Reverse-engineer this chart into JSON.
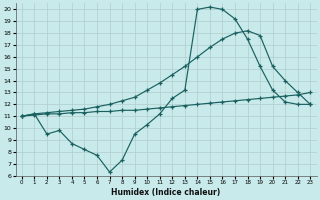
{
  "xlabel": "Humidex (Indice chaleur)",
  "bg_color": "#c8eaea",
  "grid_color": "#b0cccc",
  "line_color": "#1a6060",
  "xlim": [
    -0.5,
    23.5
  ],
  "ylim": [
    6,
    20.5
  ],
  "xticks": [
    0,
    1,
    2,
    3,
    4,
    5,
    6,
    7,
    8,
    9,
    10,
    11,
    12,
    13,
    14,
    15,
    16,
    17,
    18,
    19,
    20,
    21,
    22,
    23
  ],
  "yticks": [
    6,
    7,
    8,
    9,
    10,
    11,
    12,
    13,
    14,
    15,
    16,
    17,
    18,
    19,
    20
  ],
  "s1_x": [
    0,
    1,
    2,
    3,
    4,
    5,
    6,
    7,
    8,
    9,
    10,
    11,
    12,
    13,
    14,
    15,
    16,
    17,
    18,
    19,
    20,
    21,
    22,
    23
  ],
  "s1_y": [
    11.0,
    11.2,
    9.5,
    9.8,
    8.7,
    8.2,
    7.7,
    6.3,
    7.3,
    9.5,
    10.3,
    11.2,
    12.5,
    13.2,
    20.0,
    20.2,
    20.0,
    19.2,
    17.5,
    15.2,
    13.2,
    12.2,
    12.0,
    12.0
  ],
  "s2_x": [
    0,
    1,
    2,
    3,
    4,
    5,
    6,
    7,
    8,
    9,
    10,
    11,
    12,
    13,
    14,
    15,
    16,
    17,
    18,
    19,
    20,
    21,
    22,
    23
  ],
  "s2_y": [
    11.0,
    11.2,
    11.3,
    11.4,
    11.5,
    11.6,
    11.8,
    12.0,
    12.3,
    12.6,
    13.2,
    13.8,
    14.5,
    15.2,
    16.0,
    16.8,
    17.5,
    18.0,
    18.2,
    17.8,
    15.2,
    14.0,
    13.0,
    12.0
  ],
  "s3_x": [
    0,
    1,
    2,
    3,
    4,
    5,
    6,
    7,
    8,
    9,
    10,
    11,
    12,
    13,
    14,
    15,
    16,
    17,
    18,
    19,
    20,
    21,
    22,
    23
  ],
  "s3_y": [
    11.0,
    11.1,
    11.2,
    11.2,
    11.3,
    11.3,
    11.4,
    11.4,
    11.5,
    11.5,
    11.6,
    11.7,
    11.8,
    11.9,
    12.0,
    12.1,
    12.2,
    12.3,
    12.4,
    12.5,
    12.6,
    12.7,
    12.8,
    13.0
  ]
}
